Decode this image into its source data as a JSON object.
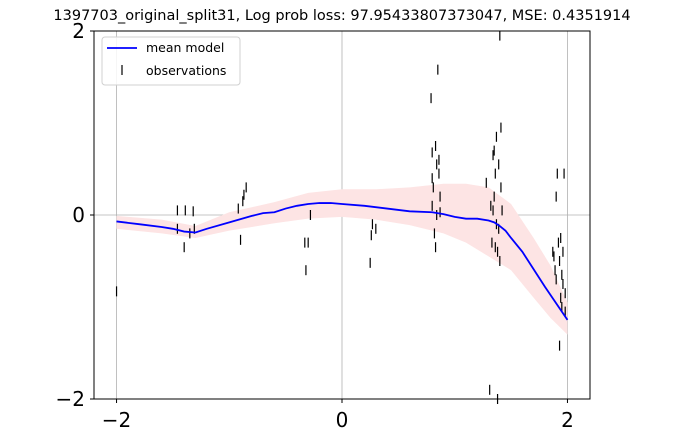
{
  "chart_data": {
    "type": "line",
    "title": "1397703_original_split31, Log prob loss: 97.95433807373047, MSE: 0.4351914",
    "xlabel": "",
    "ylabel": "",
    "xlim": [
      -2.2,
      2.2
    ],
    "ylim": [
      -2,
      2
    ],
    "xticks": [
      -2,
      0,
      2
    ],
    "yticks": [
      -2,
      0,
      2
    ],
    "xtick_labels": [
      "−2",
      "0",
      "2"
    ],
    "ytick_labels": [
      "−2",
      "0",
      "2"
    ],
    "grid": true,
    "legend_position": "top-left",
    "colors": {
      "mean": "#0000ff",
      "band": "#fde4e4",
      "observations": "#000000",
      "grid": "#b0b0b0"
    },
    "series": [
      {
        "name": "mean model",
        "kind": "line",
        "x": [
          -2.0,
          -1.8,
          -1.6,
          -1.5,
          -1.4,
          -1.3,
          -1.2,
          -1.0,
          -0.8,
          -0.7,
          -0.6,
          -0.5,
          -0.4,
          -0.3,
          -0.2,
          -0.1,
          0.0,
          0.2,
          0.4,
          0.6,
          0.8,
          0.9,
          1.0,
          1.1,
          1.2,
          1.3,
          1.35,
          1.4,
          1.45,
          1.5,
          1.6,
          1.8,
          2.0
        ],
        "y": [
          -0.07,
          -0.1,
          -0.13,
          -0.15,
          -0.18,
          -0.19,
          -0.15,
          -0.08,
          -0.01,
          0.02,
          0.03,
          0.07,
          0.1,
          0.12,
          0.13,
          0.13,
          0.12,
          0.1,
          0.07,
          0.04,
          0.03,
          0.01,
          -0.02,
          -0.04,
          -0.04,
          -0.06,
          -0.08,
          -0.12,
          -0.17,
          -0.25,
          -0.4,
          -0.78,
          -1.14
        ]
      },
      {
        "name": "",
        "kind": "band",
        "x": [
          -2.0,
          -1.6,
          -1.3,
          -1.0,
          -0.6,
          -0.3,
          0.0,
          0.3,
          0.6,
          0.9,
          1.1,
          1.3,
          1.5,
          1.7,
          1.85,
          2.0
        ],
        "lower": [
          -0.15,
          -0.2,
          -0.25,
          -0.17,
          -0.09,
          -0.04,
          -0.02,
          -0.05,
          -0.11,
          -0.2,
          -0.3,
          -0.45,
          -0.6,
          -0.9,
          -1.12,
          -1.3
        ],
        "upper": [
          -0.01,
          -0.05,
          -0.12,
          0.03,
          0.14,
          0.24,
          0.28,
          0.28,
          0.3,
          0.34,
          0.34,
          0.3,
          0.12,
          -0.25,
          -0.55,
          -0.95
        ]
      },
      {
        "name": "observations",
        "kind": "scatter",
        "x": [
          -2.0,
          -1.46,
          -1.46,
          -1.4,
          -1.39,
          -1.35,
          -1.32,
          -1.31,
          -0.92,
          -0.9,
          -0.88,
          -0.87,
          -0.85,
          -0.33,
          -0.32,
          -0.3,
          -0.28,
          0.25,
          0.26,
          0.27,
          0.3,
          0.79,
          0.8,
          0.8,
          0.8,
          0.81,
          0.82,
          0.83,
          0.83,
          0.84,
          0.84,
          0.85,
          0.86,
          0.86,
          0.87,
          0.87,
          1.28,
          1.31,
          1.32,
          1.33,
          1.34,
          1.34,
          1.35,
          1.35,
          1.36,
          1.36,
          1.37,
          1.37,
          1.38,
          1.38,
          1.39,
          1.39,
          1.4,
          1.4,
          1.41,
          1.41,
          1.42,
          1.87,
          1.88,
          1.89,
          1.9,
          1.9,
          1.91,
          1.92,
          1.93,
          1.93,
          1.94,
          1.94,
          1.95,
          1.95,
          1.96,
          1.96,
          1.97,
          1.98,
          1.98
        ],
        "y": [
          -0.83,
          0.05,
          -0.15,
          -0.35,
          0.05,
          -0.2,
          0.04,
          -0.15,
          0.07,
          -0.27,
          0.15,
          0.22,
          0.3,
          -0.3,
          -0.6,
          -0.3,
          0.0,
          -0.52,
          -0.22,
          -0.1,
          -0.15,
          1.27,
          0.68,
          0.4,
          0.1,
          0.3,
          -0.2,
          0.75,
          -0.35,
          0.55,
          0.0,
          1.58,
          0.6,
          0.45,
          0.2,
          0.03,
          0.35,
          -1.9,
          0.1,
          -0.3,
          0.65,
          0.05,
          0.7,
          0.2,
          -0.35,
          0.45,
          -0.1,
          0.85,
          -2.0,
          -0.4,
          0.55,
          -0.15,
          1.95,
          -0.5,
          0.95,
          0.3,
          0.05,
          -0.4,
          -0.45,
          -0.6,
          0.2,
          -0.7,
          0.45,
          -0.3,
          -1.42,
          -0.5,
          -0.25,
          -0.9,
          -0.65,
          -1.0,
          -0.75,
          -0.4,
          0.45,
          -1.05,
          -0.85
        ]
      }
    ]
  }
}
